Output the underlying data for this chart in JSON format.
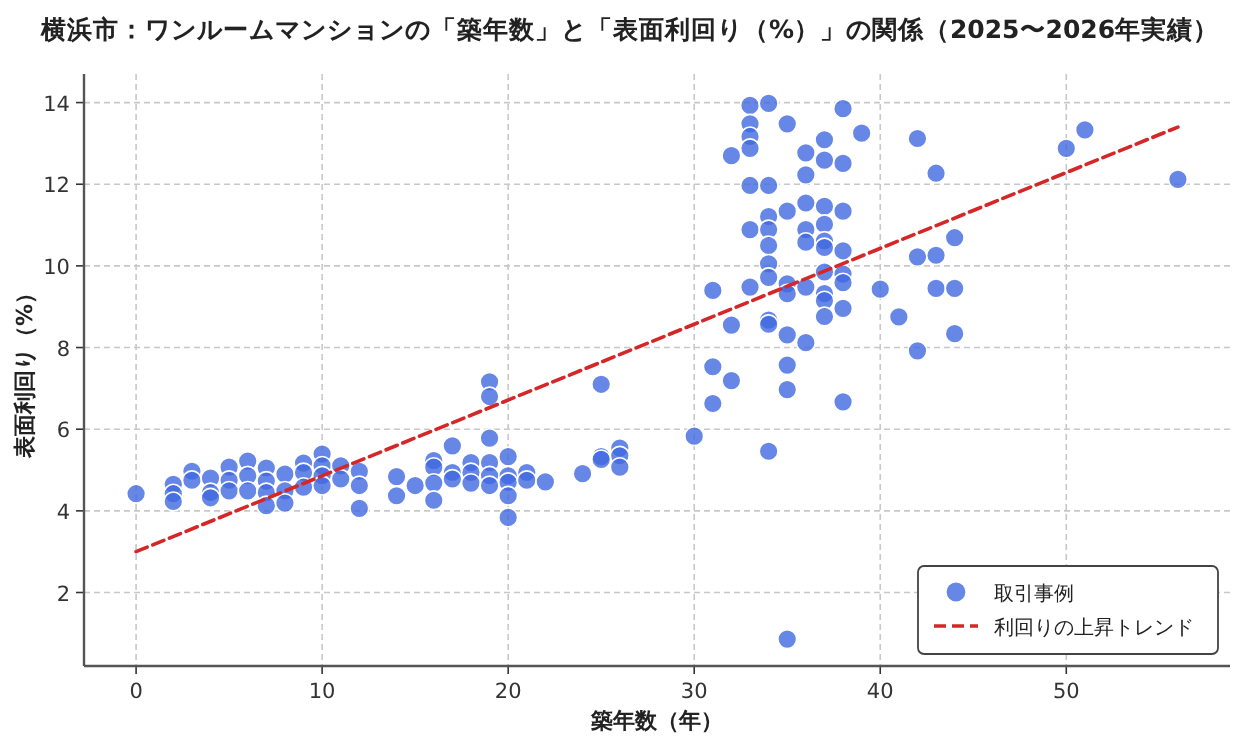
{
  "chart_data": {
    "type": "scatter",
    "title": "横浜市：ワンルームマンションの「築年数」と「表面利回り（%）」の関係（2025〜2026年実績）",
    "xlabel": "築年数（年）",
    "ylabel": "表面利回り（%）",
    "xlim": [
      -2.8,
      58.8
    ],
    "ylim": [
      0.2,
      14.7
    ],
    "xticks": [
      0,
      10,
      20,
      30,
      40,
      50
    ],
    "yticks": [
      2,
      4,
      6,
      8,
      10,
      12,
      14
    ],
    "grid": true,
    "legend": "bottom right",
    "series": [
      {
        "name": "取引事例",
        "marker": "circle",
        "color": "#4169e1",
        "x": [
          0,
          2,
          2,
          2,
          3,
          3,
          4,
          4,
          4,
          5,
          5,
          5,
          6,
          6,
          6,
          7,
          7,
          7,
          7,
          8,
          8,
          8,
          9,
          9,
          9,
          10,
          10,
          10,
          10,
          11,
          11,
          12,
          12,
          12,
          14,
          14,
          15,
          16,
          16,
          16,
          16,
          17,
          17,
          17,
          18,
          18,
          18,
          19,
          19,
          19,
          19,
          19,
          19,
          20,
          20,
          20,
          20,
          20,
          21,
          21,
          22,
          24,
          25,
          25,
          25,
          26,
          26,
          26,
          30,
          31,
          31,
          31,
          32,
          32,
          32,
          33,
          33,
          33,
          33,
          33,
          33,
          33,
          34,
          34,
          34,
          34,
          34,
          34,
          34,
          34,
          34,
          34,
          35,
          35,
          35,
          35,
          35,
          35,
          35,
          35,
          36,
          36,
          36,
          36,
          36,
          36,
          36,
          37,
          37,
          37,
          37,
          37,
          37,
          37,
          37,
          37,
          37,
          38,
          38,
          38,
          38,
          38,
          38,
          38,
          38,
          39,
          40,
          41,
          42,
          42,
          42,
          43,
          43,
          43,
          44,
          44,
          44,
          50,
          51,
          56
        ],
        "values": [
          4.42,
          4.65,
          4.42,
          4.23,
          4.97,
          4.75,
          4.8,
          4.45,
          4.32,
          5.07,
          4.75,
          4.49,
          5.22,
          4.86,
          4.49,
          5.05,
          4.73,
          4.45,
          4.13,
          4.9,
          4.49,
          4.19,
          5.17,
          4.94,
          4.58,
          5.39,
          5.1,
          4.86,
          4.62,
          5.1,
          4.78,
          4.97,
          4.62,
          4.06,
          4.84,
          4.37,
          4.62,
          5.23,
          5.07,
          4.68,
          4.26,
          5.59,
          4.94,
          4.78,
          5.18,
          4.94,
          4.68,
          7.16,
          6.8,
          5.78,
          5.18,
          4.86,
          4.62,
          5.33,
          4.86,
          4.7,
          4.37,
          3.84,
          4.94,
          4.75,
          4.71,
          4.91,
          7.1,
          5.33,
          5.26,
          5.54,
          5.35,
          5.07,
          5.83,
          9.4,
          7.53,
          6.63,
          12.7,
          8.55,
          7.19,
          13.93,
          13.48,
          13.17,
          12.88,
          11.97,
          10.89,
          9.48,
          13.98,
          11.97,
          11.21,
          10.89,
          10.5,
          10.05,
          9.72,
          8.67,
          8.57,
          5.46,
          13.48,
          11.34,
          9.56,
          9.32,
          8.31,
          7.57,
          6.97,
          0.86,
          12.77,
          12.23,
          11.54,
          10.89,
          10.58,
          9.48,
          8.12,
          13.09,
          12.59,
          11.46,
          11.02,
          10.61,
          10.45,
          9.85,
          9.32,
          9.15,
          8.76,
          13.85,
          12.51,
          11.34,
          10.37,
          9.8,
          9.59,
          8.96,
          6.67,
          13.25,
          9.43,
          8.75,
          13.12,
          10.22,
          7.92,
          12.27,
          10.26,
          9.45,
          10.69,
          9.45,
          8.34,
          12.88,
          13.33,
          12.12
        ]
      },
      {
        "name": "利回りの上昇トレンド",
        "type": "line",
        "marker": "none",
        "line_style": "dashed",
        "color": "#d62728",
        "x": [
          0,
          56
        ],
        "values": [
          3.0,
          13.4
        ]
      }
    ]
  }
}
